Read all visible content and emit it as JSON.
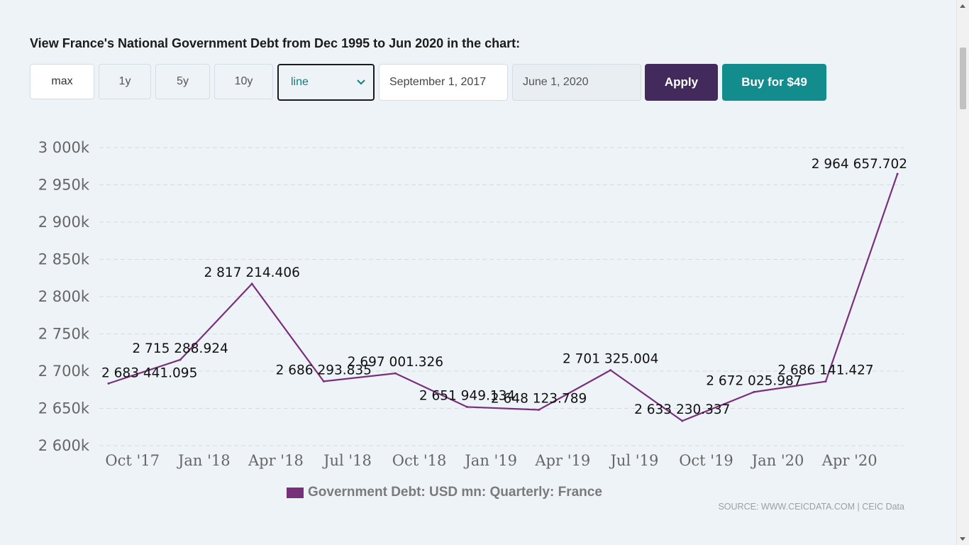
{
  "heading": "View France's National Government Debt from Dec 1995 to Jun 2020 in the chart:",
  "controls": {
    "range_buttons": [
      "max",
      "1y",
      "5y",
      "10y"
    ],
    "chart_type": "line",
    "start_date": "September 1, 2017",
    "end_date": "June 1, 2020",
    "apply_label": "Apply",
    "buy_label": "Buy for $49"
  },
  "colors": {
    "line": "#79307a",
    "apply": "#432a5c",
    "buy": "#128c8c"
  },
  "legend_label": "Government Debt: USD mn: Quarterly: France",
  "source": "SOURCE: WWW.CEICDATA.COM | CEIC Data",
  "chart_data": {
    "type": "line",
    "x": [
      "Sep '17",
      "Dec '17",
      "Mar '18",
      "Jun '18",
      "Sep '18",
      "Dec '18",
      "Mar '19",
      "Jun '19",
      "Sep '19",
      "Dec '19",
      "Mar '20",
      "Jun '20"
    ],
    "series": [
      {
        "name": "Government Debt: USD mn: Quarterly: France",
        "values": [
          2683441.095,
          2715288.924,
          2817214.406,
          2686293.835,
          2697001.326,
          2651949.134,
          2648123.789,
          2701325.004,
          2633230.337,
          2672025.987,
          2686141.427,
          2964657.702
        ],
        "labels": [
          "2 683 441.095",
          "2 715 288.924",
          "2 817 214.406",
          "2 686 293.835",
          "2 697 001.326",
          "2 651 949.134",
          "2 648 123.789",
          "2 701 325.004",
          "2 633 230.337",
          "2 672 025.987",
          "2 686 141.427",
          "2 964 657.702"
        ]
      }
    ],
    "xtick_labels": [
      "Oct '17",
      "Jan '18",
      "Apr '18",
      "Jul '18",
      "Oct '18",
      "Jan '19",
      "Apr '19",
      "Jul '19",
      "Oct '19",
      "Jan '20",
      "Apr '20"
    ],
    "ytick_labels": [
      "3 000k",
      "2 950k",
      "2 900k",
      "2 850k",
      "2 800k",
      "2 750k",
      "2 700k",
      "2 650k",
      "2 600k"
    ],
    "ylim": [
      2600000,
      3000000
    ],
    "grid": true,
    "legend_position": "bottom"
  }
}
